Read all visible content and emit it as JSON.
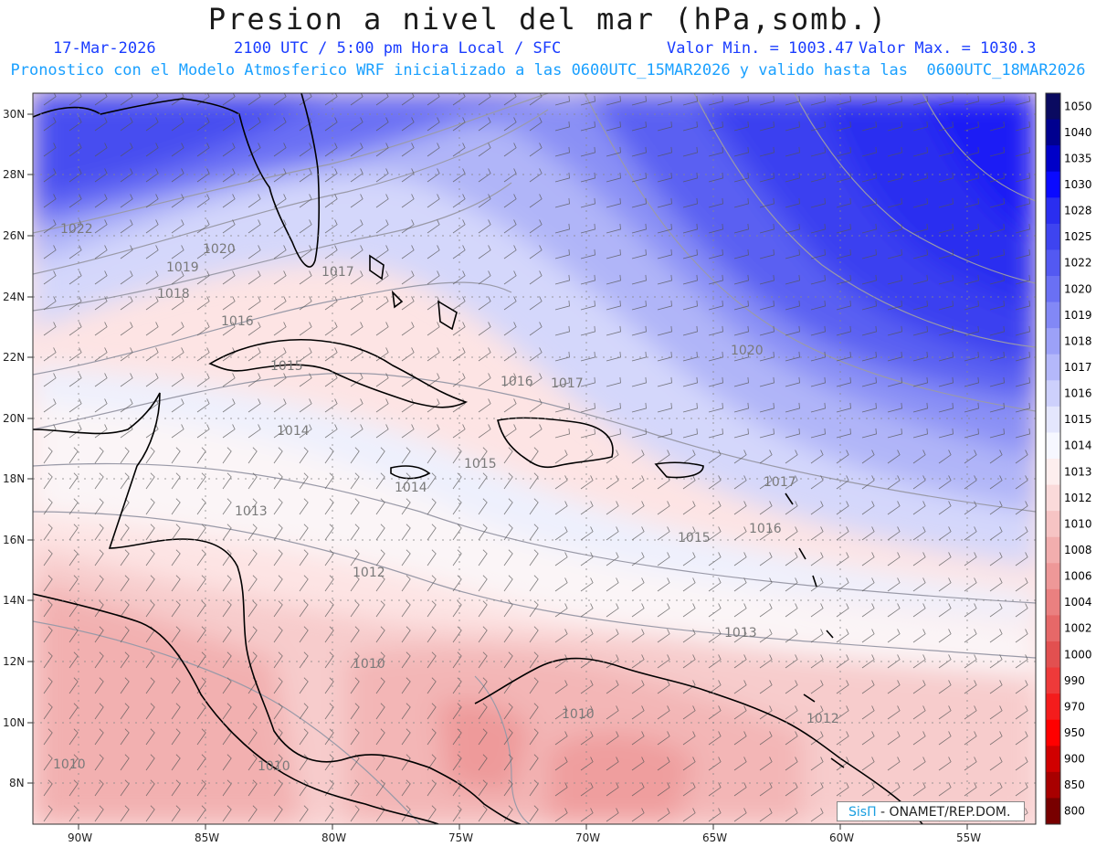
{
  "header": {
    "title": "Presion a nivel del mar (hPa,somb.)",
    "date": "17-Mar-2026",
    "time": "2100 UTC / 5:00 pm Hora Local / SFC",
    "min_label": "Valor Min. = 1003.47",
    "max_label": "Valor Max. = 1030.3",
    "model_info": "Pronostico con el Modelo Atmosferico WRF inicializado a las 0600UTC_15MAR2026 y valido hasta las  0600UTC_18MAR2026"
  },
  "axes": {
    "lon_labels": [
      "90W",
      "85W",
      "80W",
      "75W",
      "70W",
      "65W",
      "60W",
      "55W"
    ],
    "lat_labels": [
      "30N",
      "28N",
      "26N",
      "24N",
      "22N",
      "20N",
      "18N",
      "16N",
      "14N",
      "12N",
      "10N",
      "8N"
    ]
  },
  "colorbar": {
    "levels": [
      "1050",
      "1040",
      "1035",
      "1030",
      "1028",
      "1025",
      "1022",
      "1020",
      "1019",
      "1018",
      "1017",
      "1016",
      "1015",
      "1014",
      "1013",
      "1012",
      "1010",
      "1008",
      "1006",
      "1004",
      "1002",
      "1000",
      "990",
      "970",
      "950",
      "900",
      "850",
      "800"
    ],
    "colors": [
      "#0a0a60",
      "#00008f",
      "#0000c8",
      "#0a0aff",
      "#2a2ef0",
      "#3e44f0",
      "#5359f2",
      "#6a70f4",
      "#8288f6",
      "#9ca1f8",
      "#b4b8fa",
      "#cdd0fc",
      "#e4e6fd",
      "#f6f7ff",
      "#fdeeee",
      "#fadada",
      "#f6c4c4",
      "#f2aeae",
      "#ee9898",
      "#ea8080",
      "#e66868",
      "#e25050",
      "#ee3a3a",
      "#f41c1c",
      "#ff0000",
      "#d00000",
      "#a80000",
      "#780000"
    ]
  },
  "isobar_labels": [
    "1022",
    "1020",
    "1019",
    "1018",
    "1017",
    "1016",
    "1015",
    "1020",
    "1014",
    "1013",
    "1016",
    "1017",
    "1015",
    "1016",
    "1017",
    "1015",
    "1013",
    "1012",
    "1010",
    "1010",
    "1012",
    "1010",
    "1010",
    "1014"
  ],
  "credit": {
    "logo": "SisΠ",
    "text": " - ONAMET/REP.DOM."
  },
  "colors": {
    "title": "#1a1a1a",
    "date_line": "#1a3cff",
    "model_line": "#1aa0ff"
  }
}
